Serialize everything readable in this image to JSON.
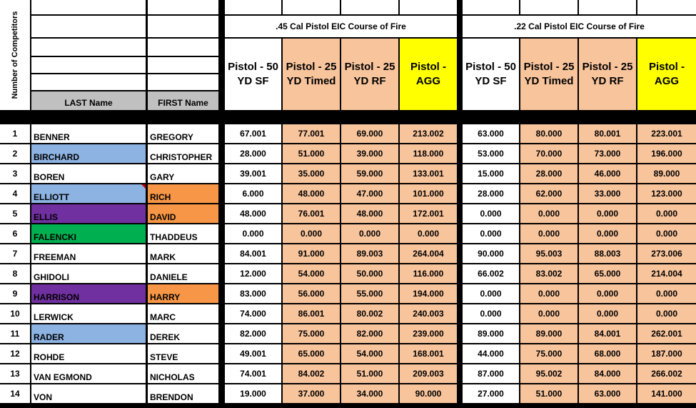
{
  "header": {
    "competitor_count_label": "Number of Competitors",
    "last_name_label": "LAST Name",
    "first_name_label": "FIRST Name"
  },
  "sections": [
    {
      "title": ".45 Cal Pistol EIC Course of Fire",
      "columns": [
        "Pistol - 50 YD SF",
        "Pistol - 25 YD Timed",
        "Pistol - 25 YD RF",
        "Pistol - AGG"
      ]
    },
    {
      "title": ".22 Cal Pistol EIC Course of Fire",
      "columns": [
        "Pistol - 50 YD SF",
        "Pistol - 25 YD Timed",
        "Pistol - 25 YD RF",
        "Pistol - AGG"
      ]
    }
  ],
  "colors": {
    "white": "#ffffff",
    "peach": "#f8c49c",
    "yellow": "#ffff00",
    "blue": "#8db3e2",
    "purple": "#7030a0",
    "green": "#00b050",
    "orange": "#f79646",
    "gray": "#c0c0c0"
  },
  "rows": [
    {
      "rank": "1",
      "last": "BENNER",
      "first": "GREGORY",
      "last_color": "white",
      "first_color": "white",
      "cal45": [
        "67.001",
        "77.001",
        "69.000",
        "213.002"
      ],
      "cal22": [
        "63.000",
        "80.000",
        "80.001",
        "223.001"
      ]
    },
    {
      "rank": "2",
      "last": "BIRCHARD",
      "first": "CHRISTOPHER",
      "last_color": "blue",
      "first_color": "white",
      "cal45": [
        "28.000",
        "51.000",
        "39.000",
        "118.000"
      ],
      "cal22": [
        "53.000",
        "70.000",
        "73.000",
        "196.000"
      ]
    },
    {
      "rank": "3",
      "last": "BOREN",
      "first": "GARY",
      "last_color": "white",
      "first_color": "white",
      "cal45": [
        "39.001",
        "35.000",
        "59.000",
        "133.001"
      ],
      "cal22": [
        "15.000",
        "28.000",
        "46.000",
        "89.000"
      ]
    },
    {
      "rank": "4",
      "last": "ELLIOTT",
      "first": "RICH",
      "last_color": "blue",
      "first_color": "orange",
      "comment": true,
      "cal45": [
        "6.000",
        "48.000",
        "47.000",
        "101.000"
      ],
      "cal22": [
        "28.000",
        "62.000",
        "33.000",
        "123.000"
      ]
    },
    {
      "rank": "5",
      "last": "ELLIS",
      "first": "DAVID",
      "last_color": "purple",
      "first_color": "orange",
      "cal45": [
        "48.000",
        "76.001",
        "48.000",
        "172.001"
      ],
      "cal22": [
        "0.000",
        "0.000",
        "0.000",
        "0.000"
      ]
    },
    {
      "rank": "6",
      "last": "FALENCKI",
      "first": "THADDEUS",
      "last_color": "green",
      "first_color": "white",
      "cal45": [
        "0.000",
        "0.000",
        "0.000",
        "0.000"
      ],
      "cal22": [
        "0.000",
        "0.000",
        "0.000",
        "0.000"
      ]
    },
    {
      "rank": "7",
      "last": "FREEMAN",
      "first": "MARK",
      "last_color": "white",
      "first_color": "white",
      "cal45": [
        "84.001",
        "91.000",
        "89.003",
        "264.004"
      ],
      "cal22": [
        "90.000",
        "95.003",
        "88.003",
        "273.006"
      ]
    },
    {
      "rank": "8",
      "last": "GHIDOLI",
      "first": "DANIELE",
      "last_color": "white",
      "first_color": "white",
      "cal45": [
        "12.000",
        "54.000",
        "50.000",
        "116.000"
      ],
      "cal22": [
        "66.002",
        "83.002",
        "65.000",
        "214.004"
      ]
    },
    {
      "rank": "9",
      "last": "HARRISON",
      "first": "HARRY",
      "last_color": "purple",
      "first_color": "orange",
      "cal45": [
        "83.000",
        "56.000",
        "55.000",
        "194.000"
      ],
      "cal22": [
        "0.000",
        "0.000",
        "0.000",
        "0.000"
      ]
    },
    {
      "rank": "10",
      "last": "LERWICK",
      "first": "MARC",
      "last_color": "white",
      "first_color": "white",
      "cal45": [
        "74.000",
        "86.001",
        "80.002",
        "240.003"
      ],
      "cal22": [
        "0.000",
        "0.000",
        "0.000",
        "0.000"
      ]
    },
    {
      "rank": "11",
      "last": "RADER",
      "first": "DEREK",
      "last_color": "blue",
      "first_color": "white",
      "cal45": [
        "82.000",
        "75.000",
        "82.000",
        "239.000"
      ],
      "cal22": [
        "89.000",
        "89.000",
        "84.001",
        "262.001"
      ]
    },
    {
      "rank": "12",
      "last": "ROHDE",
      "first": "STEVE",
      "last_color": "white",
      "first_color": "white",
      "cal45": [
        "49.001",
        "65.000",
        "54.000",
        "168.001"
      ],
      "cal22": [
        "44.000",
        "75.000",
        "68.000",
        "187.000"
      ]
    },
    {
      "rank": "13",
      "last": "VAN EGMOND",
      "first": "NICHOLAS",
      "last_color": "white",
      "first_color": "white",
      "cal45": [
        "74.001",
        "84.002",
        "51.000",
        "209.003"
      ],
      "cal22": [
        "87.000",
        "95.002",
        "84.000",
        "266.002"
      ]
    },
    {
      "rank": "14",
      "last": "VON",
      "first": "BRENDON",
      "last_color": "white",
      "first_color": "white",
      "cal45": [
        "19.000",
        "37.000",
        "34.000",
        "90.000"
      ],
      "cal22": [
        "27.000",
        "51.000",
        "63.000",
        "141.000"
      ]
    }
  ]
}
